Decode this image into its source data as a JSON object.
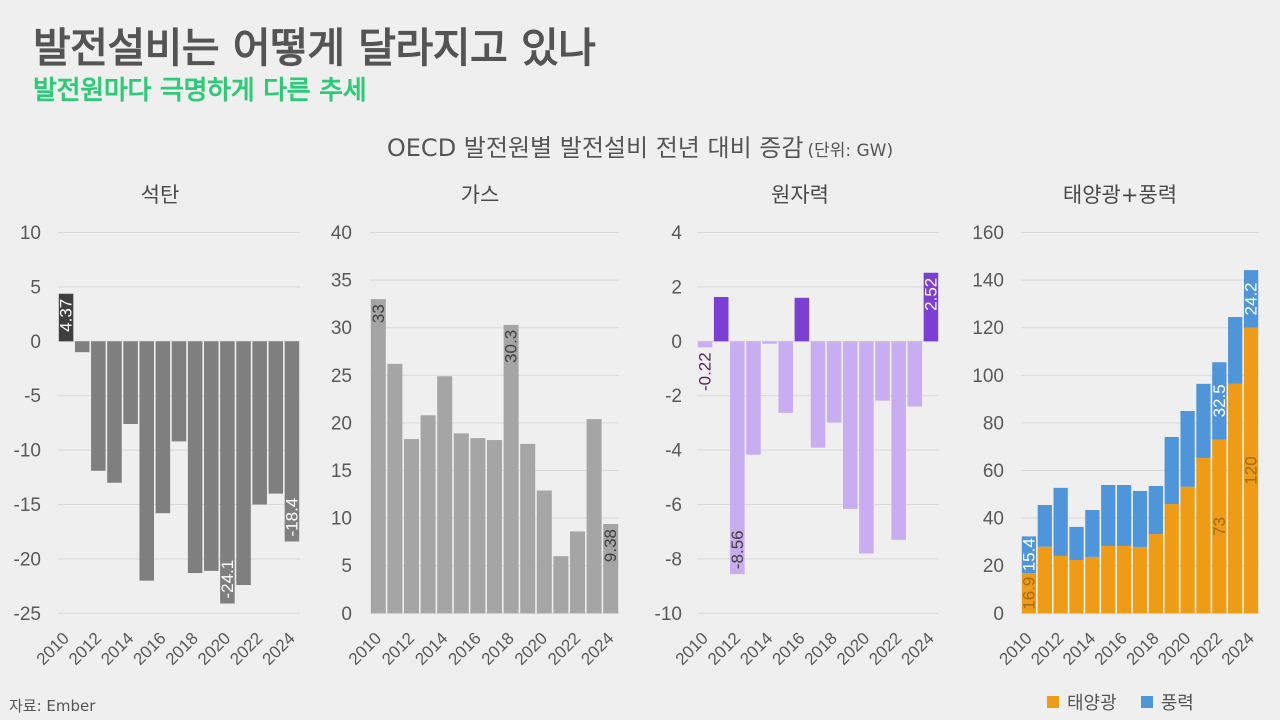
{
  "header": {
    "title": "발전설비는 어떻게 달라지고 있나",
    "subtitle": "발전원마다 극명하게 다른 추세"
  },
  "figure": {
    "title": "OECD 발전원별 발전설비 전년 대비 증감",
    "unit": "(단위: GW)"
  },
  "source": "자료: Ember",
  "colors": {
    "title": "#545454",
    "subtitle": "#2dcb78",
    "gridline": "#d9d9d9"
  },
  "chart_data": [
    {
      "id": "coal",
      "type": "bar",
      "title": "석탄",
      "xlabel": "",
      "ylabel": "",
      "categories": [
        "2010",
        "2011",
        "2012",
        "2013",
        "2014",
        "2015",
        "2016",
        "2017",
        "2018",
        "2019",
        "2020",
        "2021",
        "2022",
        "2023",
        "2024"
      ],
      "xtick_labels": [
        "2010",
        "2012",
        "2014",
        "2016",
        "2018",
        "2020",
        "2022",
        "2024"
      ],
      "ylim": [
        -25,
        10
      ],
      "yticks": [
        -25,
        -20,
        -15,
        -10,
        -5,
        0,
        5,
        10
      ],
      "grid": true,
      "stacked": false,
      "series": [
        {
          "id": "coal",
          "name": "석탄",
          "values": [
            4.37,
            -1.0,
            -11.9,
            -13.0,
            -7.6,
            -22.0,
            -15.8,
            -9.2,
            -21.3,
            -21.1,
            -24.1,
            -22.4,
            -15.0,
            -14.0,
            -18.4
          ],
          "color": "#7f7f7f",
          "highlight_color": "#3f3f3f",
          "highlight_categories": [
            "2010"
          ]
        }
      ],
      "data_labels": [
        {
          "category": "2010",
          "series": "석탄",
          "text": "4.37",
          "position": "inside_end",
          "color": "#ffffff"
        },
        {
          "category": "2020",
          "series": "석탄",
          "text": "-24.1",
          "position": "inside_end",
          "color": "#ffffff"
        },
        {
          "category": "2024",
          "series": "석탄",
          "text": "-18.4",
          "position": "inside_end",
          "color": "#ffffff"
        }
      ]
    },
    {
      "id": "gas",
      "type": "bar",
      "title": "가스",
      "xlabel": "",
      "ylabel": "",
      "categories": [
        "2010",
        "2011",
        "2012",
        "2013",
        "2014",
        "2015",
        "2016",
        "2017",
        "2018",
        "2019",
        "2020",
        "2021",
        "2022",
        "2023",
        "2024"
      ],
      "xtick_labels": [
        "2010",
        "2012",
        "2014",
        "2016",
        "2018",
        "2020",
        "2022",
        "2024"
      ],
      "ylim": [
        0,
        40
      ],
      "yticks": [
        0,
        5,
        10,
        15,
        20,
        25,
        30,
        35,
        40
      ],
      "grid": true,
      "stacked": false,
      "series": [
        {
          "id": "gas",
          "name": "가스",
          "values": [
            33,
            26.2,
            18.3,
            20.8,
            24.9,
            18.9,
            18.4,
            18.2,
            30.3,
            17.8,
            12.9,
            6.0,
            8.6,
            20.4,
            9.38
          ],
          "color": "#a5a5a5",
          "highlight_color": "#a5a5a5",
          "highlight_categories": []
        }
      ],
      "data_labels": [
        {
          "category": "2010",
          "series": "가스",
          "text": "33",
          "position": "inside_end",
          "color": "#404040"
        },
        {
          "category": "2018",
          "series": "가스",
          "text": "30.3",
          "position": "inside_end",
          "color": "#404040"
        },
        {
          "category": "2024",
          "series": "가스",
          "text": "9.38",
          "position": "inside_end",
          "color": "#404040"
        }
      ]
    },
    {
      "id": "nuclear",
      "type": "bar",
      "title": "원자력",
      "xlabel": "",
      "ylabel": "",
      "categories": [
        "2010",
        "2011",
        "2012",
        "2013",
        "2014",
        "2015",
        "2016",
        "2017",
        "2018",
        "2019",
        "2020",
        "2021",
        "2022",
        "2023",
        "2024"
      ],
      "xtick_labels": [
        "2010",
        "2012",
        "2014",
        "2016",
        "2018",
        "2020",
        "2022",
        "2024"
      ],
      "ylim": [
        -10,
        4
      ],
      "yticks": [
        -10,
        -8,
        -6,
        -4,
        -2,
        0,
        2,
        4
      ],
      "grid": true,
      "stacked": false,
      "series": [
        {
          "id": "nuclear",
          "name": "원자력",
          "values": [
            -0.22,
            1.63,
            -8.56,
            -4.17,
            -0.09,
            -2.63,
            1.6,
            -3.91,
            -2.99,
            -6.16,
            -7.8,
            -2.18,
            -7.3,
            -2.4,
            2.52
          ],
          "color": "#c8aef0",
          "highlight_color": "#7b3fd6",
          "highlight_categories": [
            "2011",
            "2016",
            "2024"
          ]
        }
      ],
      "data_labels": [
        {
          "category": "2010",
          "series": "원자력",
          "text": "-0.22",
          "position": "outside_end",
          "color": "#5c1f5c"
        },
        {
          "category": "2012",
          "series": "원자력",
          "text": "-8.56",
          "position": "inside_end",
          "color": "#404040"
        },
        {
          "category": "2024",
          "series": "원자력",
          "text": "2.52",
          "position": "inside_end",
          "color": "#ffffff"
        }
      ]
    },
    {
      "id": "solar-wind",
      "type": "bar",
      "title": "태양광+풍력",
      "xlabel": "",
      "ylabel": "",
      "categories": [
        "2010",
        "2011",
        "2012",
        "2013",
        "2014",
        "2015",
        "2016",
        "2017",
        "2018",
        "2019",
        "2020",
        "2021",
        "2022",
        "2023",
        "2024"
      ],
      "xtick_labels": [
        "2010",
        "2012",
        "2014",
        "2016",
        "2018",
        "2020",
        "2022",
        "2024"
      ],
      "ylim": [
        0,
        160
      ],
      "yticks": [
        0,
        20,
        40,
        60,
        80,
        100,
        120,
        140,
        160
      ],
      "grid": true,
      "stacked": true,
      "legend": {
        "position": "bottom"
      },
      "series": [
        {
          "id": "solar",
          "name": "태양광",
          "values": [
            16.9,
            28.0,
            24.1,
            22.4,
            23.7,
            28.3,
            28.3,
            27.9,
            33.3,
            45.9,
            53.2,
            65.3,
            73,
            96.4,
            120
          ],
          "color": "#ee9b15",
          "highlight_color": "#ee9b15",
          "highlight_categories": []
        },
        {
          "id": "wind",
          "name": "풍력",
          "values": [
            15.4,
            17.5,
            28.6,
            13.9,
            19.7,
            25.6,
            25.6,
            23.5,
            20.2,
            28.2,
            31.8,
            31.1,
            32.5,
            28.1,
            24.2
          ],
          "color": "#4f95d9",
          "highlight_color": "#4f95d9",
          "highlight_categories": []
        }
      ],
      "data_labels": [
        {
          "category": "2010",
          "series": "태양광",
          "text": "16.9",
          "position": "center",
          "color": "#a46b08"
        },
        {
          "category": "2010",
          "series": "풍력",
          "text": "15.4",
          "position": "center",
          "color": "#ffffff"
        },
        {
          "category": "2022",
          "series": "태양광",
          "text": "73",
          "position": "center",
          "color": "#a46b08"
        },
        {
          "category": "2022",
          "series": "풍력",
          "text": "32.5",
          "position": "center",
          "color": "#ffffff"
        },
        {
          "category": "2024",
          "series": "태양광",
          "text": "120",
          "position": "center",
          "color": "#a46b08"
        },
        {
          "category": "2024",
          "series": "풍력",
          "text": "24.2",
          "position": "center",
          "color": "#ffffff"
        }
      ]
    }
  ]
}
